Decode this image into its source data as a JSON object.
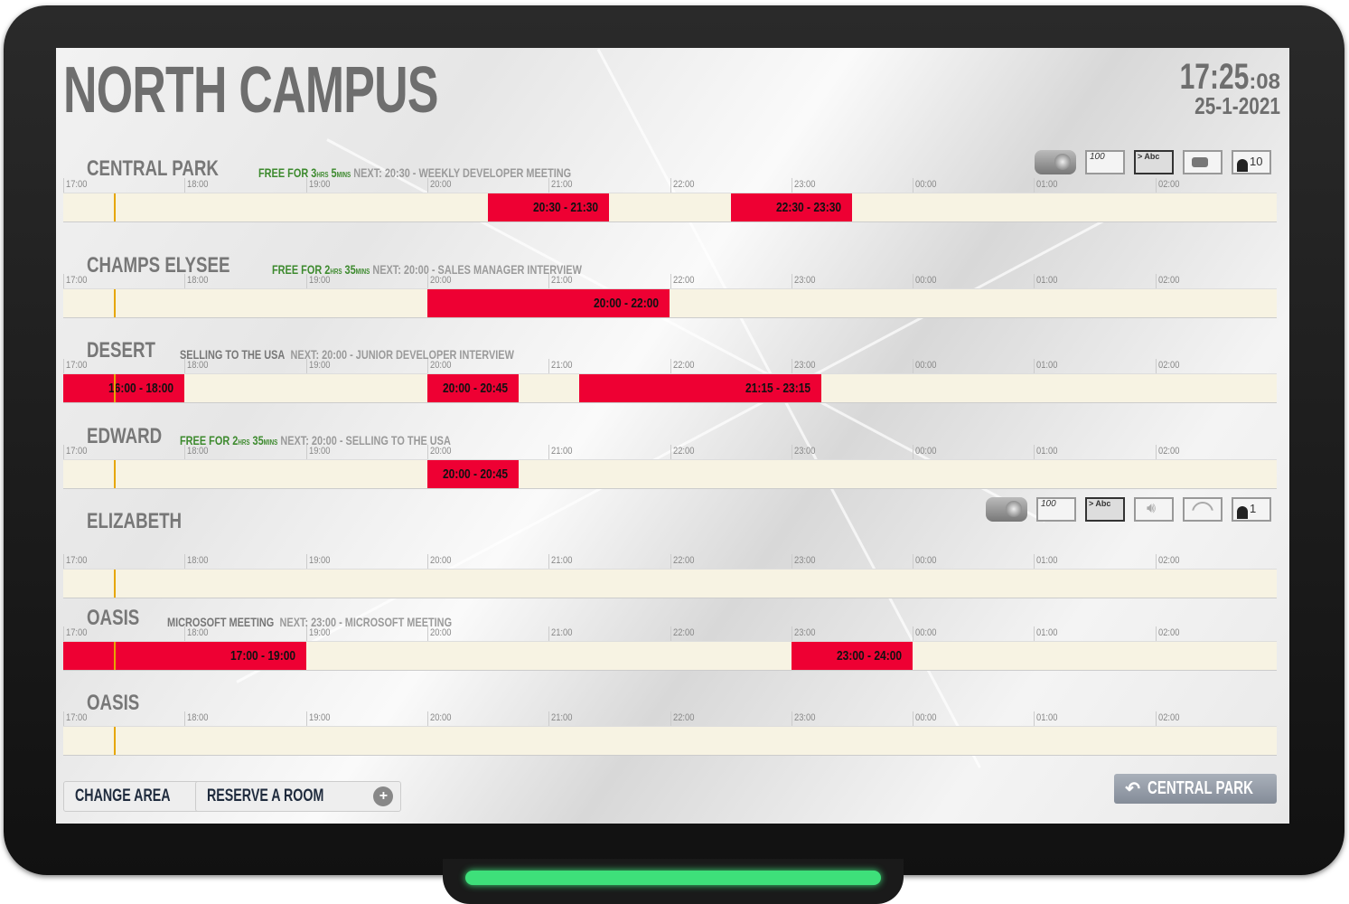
{
  "header": {
    "title": "NORTH CAMPUS",
    "time": "17:25",
    "seconds": ":08",
    "date": "25-1-2021"
  },
  "timeline": {
    "start_hour": 17,
    "hours": 10,
    "now": "17:25",
    "ticks": [
      "17:00",
      "18:00",
      "19:00",
      "20:00",
      "21:00",
      "22:00",
      "23:00",
      "00:00",
      "01:00",
      "02:00"
    ]
  },
  "colors": {
    "booking": "#ee0033",
    "free": "#3d8a2e",
    "now_line": "#e6a600",
    "track": "#f7f3e3"
  },
  "rooms": [
    {
      "name": "CENTRAL PARK",
      "status_type": "free",
      "free_hrs": "3",
      "free_mins": "5",
      "current": "",
      "next": "NEXT: 20:30 - WEEKLY DEVELOPER MEETING",
      "amenities": [
        "projector-icon",
        "whiteboard-icon",
        "screen-icon",
        "video-camera-icon",
        "capacity-icon"
      ],
      "whiteboard": "100",
      "screen": "> Abc",
      "capacity": "10",
      "bookings": [
        {
          "start": "20:30",
          "end": "21:30",
          "label": "20:30 - 21:30"
        },
        {
          "start": "22:30",
          "end": "23:30",
          "label": "22:30 - 23:30"
        }
      ]
    },
    {
      "name": "CHAMPS ELYSEE",
      "status_type": "free",
      "free_hrs": "2",
      "free_mins": "35",
      "current": "",
      "next": "NEXT: 20:00 - SALES MANAGER INTERVIEW",
      "bookings": [
        {
          "start": "20:00",
          "end": "22:00",
          "label": "20:00 - 22:00"
        }
      ]
    },
    {
      "name": "DESERT",
      "status_type": "busy",
      "current": "SELLING TO THE USA",
      "next": "NEXT: 20:00 - JUNIOR DEVELOPER INTERVIEW",
      "bookings": [
        {
          "start": "16:00",
          "end": "18:00",
          "label": "16:00 - 18:00"
        },
        {
          "start": "20:00",
          "end": "20:45",
          "label": "20:00 - 20:45"
        },
        {
          "start": "21:15",
          "end": "23:15",
          "label": "21:15 - 23:15"
        }
      ]
    },
    {
      "name": "EDWARD",
      "status_type": "free",
      "free_hrs": "2",
      "free_mins": "35",
      "current": "",
      "next": "NEXT: 20:00 - SELLING TO THE USA",
      "bookings": [
        {
          "start": "20:00",
          "end": "20:45",
          "label": "20:00 - 20:45"
        }
      ]
    },
    {
      "name": "ELIZABETH",
      "status_type": "none",
      "current": "",
      "next": "",
      "amenities": [
        "projector-icon",
        "whiteboard-icon",
        "screen-icon",
        "speaker-icon",
        "wifi-icon",
        "capacity-icon"
      ],
      "whiteboard": "100",
      "screen": "> Abc",
      "capacity": "1",
      "bookings": []
    },
    {
      "name": "OASIS",
      "status_type": "busy",
      "current": "MICROSOFT MEETING",
      "next": "NEXT: 23:00 - MICROSOFT MEETING",
      "bookings": [
        {
          "start": "17:00",
          "end": "19:00",
          "label": "17:00 - 19:00"
        },
        {
          "start": "23:00",
          "end": "24:00",
          "label": "23:00 - 24:00"
        }
      ]
    },
    {
      "name": "OASIS",
      "status_type": "none",
      "current": "",
      "next": "",
      "bookings": []
    }
  ],
  "labels": {
    "free_for": "FREE FOR ",
    "hrs": "HRS",
    "mins": "MINS"
  },
  "footer": {
    "change_area": "CHANGE AREA",
    "reserve": "RESERVE A ROOM",
    "back": "CENTRAL PARK"
  }
}
